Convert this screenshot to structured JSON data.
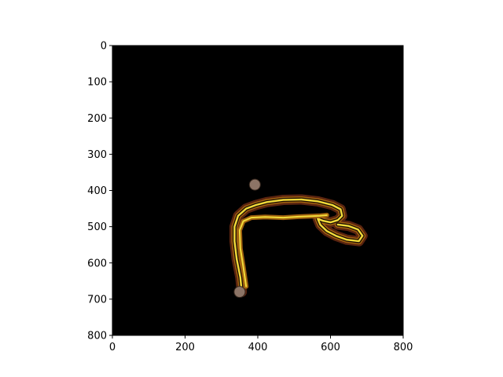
{
  "chart_data": {
    "type": "heatmap",
    "title": "",
    "xlabel": "",
    "ylabel": "",
    "xlim": [
      0,
      800
    ],
    "ylim": [
      800,
      0
    ],
    "x_ticks": [
      "0",
      "200",
      "400",
      "600",
      "800"
    ],
    "y_ticks": [
      "0",
      "100",
      "200",
      "300",
      "400",
      "500",
      "600",
      "700",
      "800"
    ],
    "x_tick_values": [
      0,
      200,
      400,
      600,
      800
    ],
    "y_tick_values": [
      0,
      100,
      200,
      300,
      400,
      500,
      600,
      700,
      800
    ],
    "background_color": "#000000",
    "colors": {
      "outer_glow": "#5a2410",
      "mid_band": "#a0620f",
      "core": "#f2dc3a",
      "blob": "#8c7466"
    },
    "stroke_path": [
      [
        356,
        680
      ],
      [
        352,
        640
      ],
      [
        342,
        590
      ],
      [
        336,
        540
      ],
      [
        336,
        500
      ],
      [
        346,
        470
      ],
      [
        368,
        450
      ],
      [
        395,
        440
      ],
      [
        425,
        432
      ],
      [
        470,
        426
      ],
      [
        520,
        425
      ],
      [
        565,
        430
      ],
      [
        605,
        440
      ],
      [
        628,
        452
      ],
      [
        632,
        470
      ],
      [
        620,
        482
      ],
      [
        600,
        488
      ],
      [
        580,
        484
      ],
      [
        565,
        478
      ],
      [
        572,
        495
      ],
      [
        590,
        512
      ],
      [
        615,
        525
      ],
      [
        645,
        536
      ],
      [
        678,
        540
      ],
      [
        688,
        525
      ],
      [
        676,
        508
      ],
      [
        650,
        498
      ],
      [
        620,
        494
      ]
    ],
    "inner_path": [
      [
        368,
        665
      ],
      [
        360,
        610
      ],
      [
        352,
        560
      ],
      [
        350,
        510
      ],
      [
        360,
        485
      ],
      [
        382,
        475
      ],
      [
        420,
        473
      ],
      [
        470,
        475
      ],
      [
        520,
        472
      ],
      [
        570,
        470
      ],
      [
        590,
        468
      ]
    ],
    "blobs": [
      [
        392,
        384
      ],
      [
        350,
        680
      ]
    ]
  }
}
